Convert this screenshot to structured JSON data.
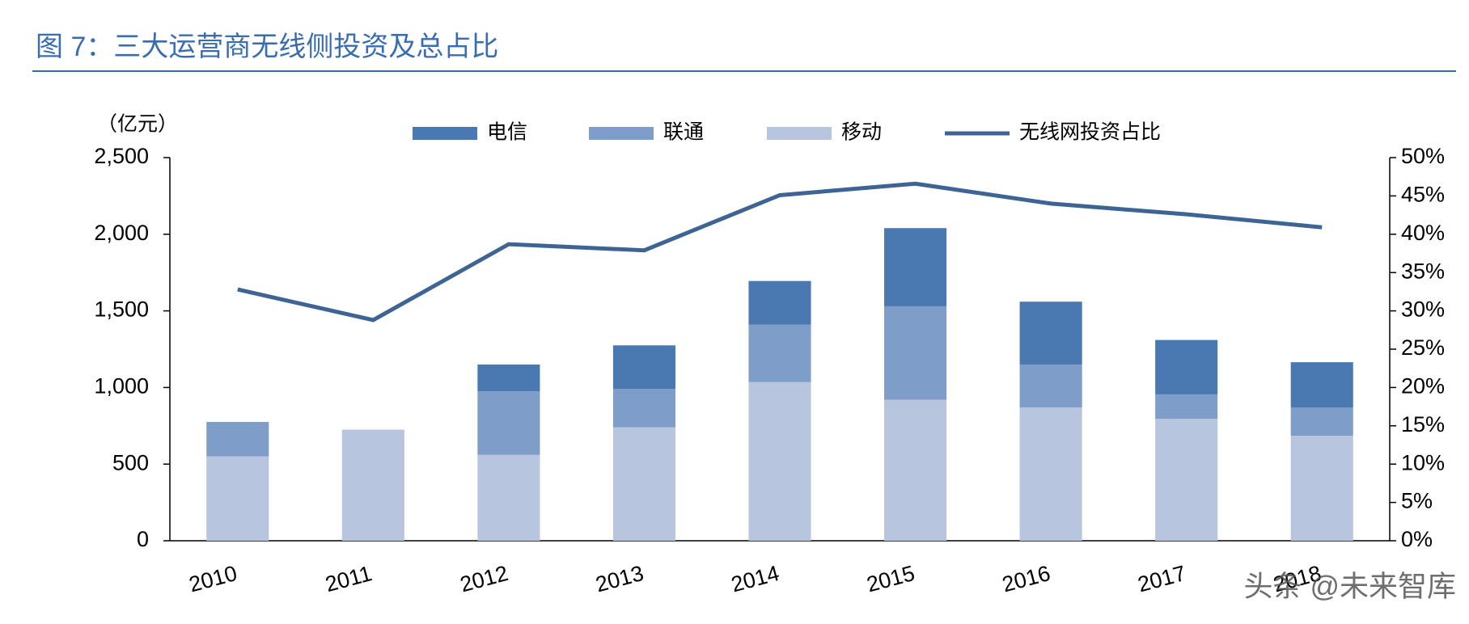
{
  "chart_data": {
    "type": "bar",
    "stacked": true,
    "title": "图 7：三大运营商无线侧投资及总占比",
    "y_label": "（亿元）",
    "watermark": "头条 @未来智库",
    "categories": [
      "2010",
      "2011",
      "2012",
      "2013",
      "2014",
      "2015",
      "2016",
      "2017",
      "2018"
    ],
    "series": [
      {
        "name": "电信",
        "color": "#4a78b0",
        "values": [
          0,
          0,
          175,
          285,
          285,
          510,
          410,
          355,
          295
        ]
      },
      {
        "name": "联通",
        "color": "#7f9dc9",
        "values": [
          225,
          0,
          415,
          250,
          375,
          610,
          280,
          160,
          185
        ]
      },
      {
        "name": "移动",
        "color": "#b8c5de",
        "values": [
          550,
          725,
          560,
          740,
          1035,
          920,
          870,
          795,
          685
        ]
      },
      {
        "name": "无线网投资占比",
        "color": "#3e6496",
        "type": "line",
        "axis": "y2",
        "values": [
          32.8,
          28.8,
          38.7,
          37.9,
          45.1,
          46.6,
          44.0,
          42.6,
          40.9
        ]
      }
    ],
    "stack_order": [
      2,
      1,
      0
    ],
    "ylim": [
      0,
      2500
    ],
    "yticks": [
      0,
      500,
      {
        "value": 1000,
        "label": "1,000"
      },
      {
        "value": 1500,
        "label": "1,500"
      },
      {
        "value": 2000,
        "label": "2,000"
      },
      {
        "value": 2500,
        "label": "2,500"
      }
    ],
    "y2lim": [
      0,
      50
    ],
    "y2ticks": [
      {
        "value": 0,
        "label": "0%"
      },
      {
        "value": 5,
        "label": "5%"
      },
      {
        "value": 10,
        "label": "10%"
      },
      {
        "value": 15,
        "label": "15%"
      },
      {
        "value": 20,
        "label": "20%"
      },
      {
        "value": 25,
        "label": "25%"
      },
      {
        "value": 30,
        "label": "30%"
      },
      {
        "value": 35,
        "label": "35%"
      },
      {
        "value": 40,
        "label": "40%"
      },
      {
        "value": 45,
        "label": "45%"
      },
      {
        "value": 50,
        "label": "50%"
      }
    ],
    "grid": false
  }
}
